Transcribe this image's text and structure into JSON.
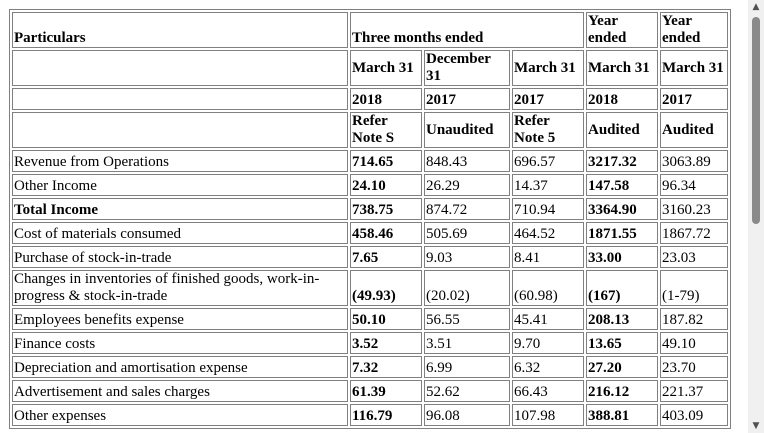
{
  "header": {
    "particulars": "Particulars",
    "three_months_ended": "Three months ended",
    "year_ended_1": "Year ended",
    "year_ended_2": "Year ended",
    "months": [
      "March 31",
      "December 31",
      "March 31",
      "March 31",
      "March 31"
    ],
    "years": [
      "2018",
      "2017",
      "2017",
      "2018",
      "2017"
    ],
    "notes": [
      "Refer Note S",
      "Unaudited",
      "Refer Note 5",
      "Audited",
      "Audited"
    ]
  },
  "rows": [
    {
      "label": "Revenue from Operations",
      "values": [
        "714.65",
        "848.43",
        "696.57",
        "3217.32",
        "3063.89"
      ]
    },
    {
      "label": "Other Income",
      "values": [
        "24.10",
        "26.29",
        "14.37",
        "147.58",
        "96.34"
      ]
    },
    {
      "label": "Total Income",
      "values": [
        "738.75",
        "874.72",
        "710.94",
        "3364.90",
        "3160.23"
      ]
    },
    {
      "label": "Cost of materials consumed",
      "values": [
        "458.46",
        "505.69",
        "464.52",
        "1871.55",
        "1867.72"
      ]
    },
    {
      "label": "Purchase of stock-in-trade",
      "values": [
        "7.65",
        "9.03",
        "8.41",
        "33.00",
        "23.03"
      ]
    },
    {
      "label": "Changes in inventories of finished goods, work-in-progress & stock-in-trade",
      "values": [
        "(49.93)",
        "(20.02)",
        "(60.98)",
        "(167)",
        "(1-79)"
      ]
    },
    {
      "label": "Employees benefits expense",
      "values": [
        "50.10",
        "56.55",
        "45.41",
        "208.13",
        "187.82"
      ]
    },
    {
      "label": "Finance costs",
      "values": [
        "3.52",
        "3.51",
        "9.70",
        "13.65",
        "49.10"
      ]
    },
    {
      "label": "Depreciation and amortisation expense",
      "values": [
        "7.32",
        "6.99",
        "6.32",
        "27.20",
        "23.70"
      ]
    },
    {
      "label": "Advertisement and sales charges",
      "values": [
        "61.39",
        "52.62",
        "66.43",
        "216.12",
        "221.37"
      ]
    },
    {
      "label": "Other expenses",
      "values": [
        "116.79",
        "96.08",
        "107.98",
        "388.81",
        "403.09"
      ]
    }
  ]
}
